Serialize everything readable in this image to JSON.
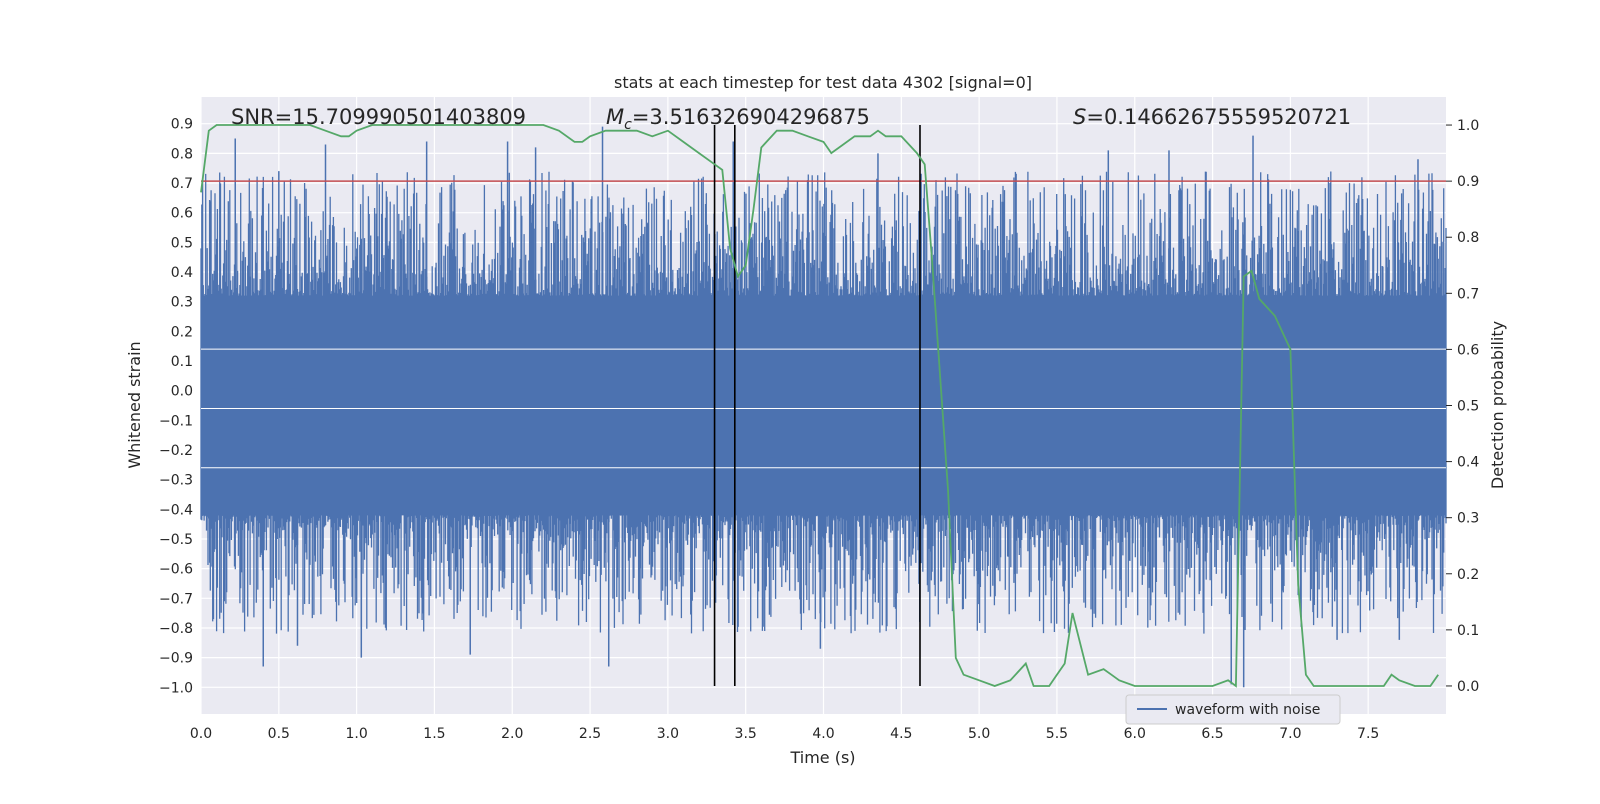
{
  "chart_data": {
    "type": "line",
    "title": "stats at each timestep for test data 4302 [signal=0]",
    "xlabel": "Time (s)",
    "ylabel_left": "Whitened strain",
    "ylabel_right": "Detection probability",
    "xlim": [
      0.0,
      8.0
    ],
    "ylim_left": [
      -1.09,
      0.99
    ],
    "ylim_right": [
      -0.05,
      1.05
    ],
    "x_ticks": [
      "0.0",
      "0.5",
      "1.0",
      "1.5",
      "2.0",
      "2.5",
      "3.0",
      "3.5",
      "4.0",
      "4.5",
      "5.0",
      "5.5",
      "6.0",
      "6.5",
      "7.0",
      "7.5"
    ],
    "x_tick_values": [
      0.0,
      0.5,
      1.0,
      1.5,
      2.0,
      2.5,
      3.0,
      3.5,
      4.0,
      4.5,
      5.0,
      5.5,
      6.0,
      6.5,
      7.0,
      7.5
    ],
    "y_left_ticks": [
      "0.9",
      "0.8",
      "0.7",
      "0.6",
      "0.5",
      "0.4",
      "0.3",
      "0.2",
      "0.1",
      "0.0",
      "−0.1",
      "−0.2",
      "−0.3",
      "−0.4",
      "−0.5",
      "−0.6",
      "−0.7",
      "−0.8",
      "−0.9",
      "−1.0"
    ],
    "y_left_tick_values": [
      0.9,
      0.8,
      0.7,
      0.6,
      0.5,
      0.4,
      0.3,
      0.2,
      0.1,
      0.0,
      -0.1,
      -0.2,
      -0.3,
      -0.4,
      -0.5,
      -0.6,
      -0.7,
      -0.8,
      -0.9,
      -1.0
    ],
    "y_right_ticks": [
      "1.0",
      "0.9",
      "0.8",
      "0.7",
      "0.6",
      "0.5",
      "0.4",
      "0.3",
      "0.2",
      "0.1",
      "0.0"
    ],
    "y_right_tick_values": [
      1.0,
      0.9,
      0.8,
      0.7,
      0.6,
      0.5,
      0.4,
      0.3,
      0.2,
      0.1,
      0.0
    ],
    "annotations": {
      "snr": "SNR=15.709990501403809",
      "mc_symbol": "M",
      "mc_subscript": "c",
      "mc_value": "=3.516326904296875",
      "s_symbol": "S",
      "s_value": "=0.14662675559520721"
    },
    "threshold_right": 0.9,
    "vertical_lines_x": [
      3.3,
      3.43,
      4.62
    ],
    "waveform": {
      "name": "waveform with noise",
      "color": "#4c72b0",
      "core_amplitude": 0.32,
      "spikes": [
        {
          "x": 0.22,
          "y": 0.85
        },
        {
          "x": 0.4,
          "y": -0.93
        },
        {
          "x": 0.5,
          "y": 0.74
        },
        {
          "x": 0.62,
          "y": -0.86
        },
        {
          "x": 0.8,
          "y": 0.83
        },
        {
          "x": 1.03,
          "y": -0.9
        },
        {
          "x": 1.45,
          "y": 0.84
        },
        {
          "x": 1.73,
          "y": -0.89
        },
        {
          "x": 1.97,
          "y": 0.84
        },
        {
          "x": 2.15,
          "y": 0.82
        },
        {
          "x": 2.58,
          "y": 0.89
        },
        {
          "x": 2.62,
          "y": -0.93
        },
        {
          "x": 3.42,
          "y": 0.84
        },
        {
          "x": 3.98,
          "y": -0.87
        },
        {
          "x": 4.35,
          "y": 0.8
        },
        {
          "x": 5.83,
          "y": 0.81
        },
        {
          "x": 6.22,
          "y": 0.81
        },
        {
          "x": 6.62,
          "y": -0.99
        },
        {
          "x": 6.76,
          "y": 0.86
        },
        {
          "x": 6.7,
          "y": -1.0
        },
        {
          "x": 7.3,
          "y": -0.84
        },
        {
          "x": 7.7,
          "y": -0.84
        },
        {
          "x": 7.82,
          "y": 0.78
        }
      ]
    },
    "probability": {
      "color": "#55a868",
      "x": [
        0.0,
        0.05,
        0.1,
        0.2,
        0.3,
        0.4,
        0.5,
        0.6,
        0.7,
        0.8,
        0.9,
        0.95,
        1.0,
        1.1,
        1.2,
        1.3,
        1.4,
        1.5,
        1.6,
        1.7,
        1.8,
        1.9,
        2.0,
        2.1,
        2.2,
        2.3,
        2.4,
        2.45,
        2.5,
        2.6,
        2.7,
        2.8,
        2.9,
        3.0,
        3.1,
        3.2,
        3.3,
        3.35,
        3.4,
        3.45,
        3.5,
        3.55,
        3.6,
        3.7,
        3.8,
        3.9,
        4.0,
        4.05,
        4.1,
        4.2,
        4.3,
        4.35,
        4.4,
        4.5,
        4.6,
        4.65,
        4.7,
        4.75,
        4.8,
        4.85,
        4.9,
        5.0,
        5.1,
        5.2,
        5.3,
        5.35,
        5.4,
        5.45,
        5.5,
        5.55,
        5.6,
        5.7,
        5.8,
        5.85,
        5.9,
        6.0,
        6.1,
        6.3,
        6.5,
        6.6,
        6.65,
        6.7,
        6.75,
        6.8,
        6.9,
        7.0,
        7.05,
        7.1,
        7.15,
        7.2,
        7.3,
        7.5,
        7.6,
        7.65,
        7.7,
        7.8,
        7.9,
        7.95
      ],
      "y": [
        0.88,
        0.99,
        1.0,
        1.0,
        1.0,
        1.0,
        1.0,
        1.0,
        1.0,
        0.99,
        0.98,
        0.98,
        0.99,
        1.0,
        1.0,
        1.0,
        1.0,
        1.0,
        1.0,
        1.0,
        1.0,
        1.0,
        1.0,
        1.0,
        1.0,
        0.99,
        0.97,
        0.97,
        0.98,
        0.99,
        0.99,
        0.99,
        0.98,
        0.99,
        0.97,
        0.95,
        0.93,
        0.92,
        0.78,
        0.73,
        0.75,
        0.85,
        0.96,
        0.99,
        0.99,
        0.98,
        0.97,
        0.95,
        0.96,
        0.98,
        0.98,
        0.99,
        0.98,
        0.98,
        0.95,
        0.93,
        0.75,
        0.55,
        0.35,
        0.05,
        0.02,
        0.01,
        0.0,
        0.01,
        0.04,
        0.0,
        0.0,
        0.0,
        0.02,
        0.04,
        0.13,
        0.02,
        0.03,
        0.02,
        0.01,
        0.0,
        0.0,
        0.0,
        0.0,
        0.01,
        0.0,
        0.73,
        0.74,
        0.69,
        0.66,
        0.6,
        0.18,
        0.02,
        0.0,
        0.0,
        0.0,
        0.0,
        0.0,
        0.02,
        0.01,
        0.0,
        0.0,
        0.02
      ]
    },
    "legend": {
      "label": "waveform with noise",
      "placement": "lower-right"
    }
  },
  "colors": {
    "plot_bg": "#eaeaf2",
    "grid": "#ffffff",
    "threshold": "#c44e52",
    "vline": "#000000"
  }
}
